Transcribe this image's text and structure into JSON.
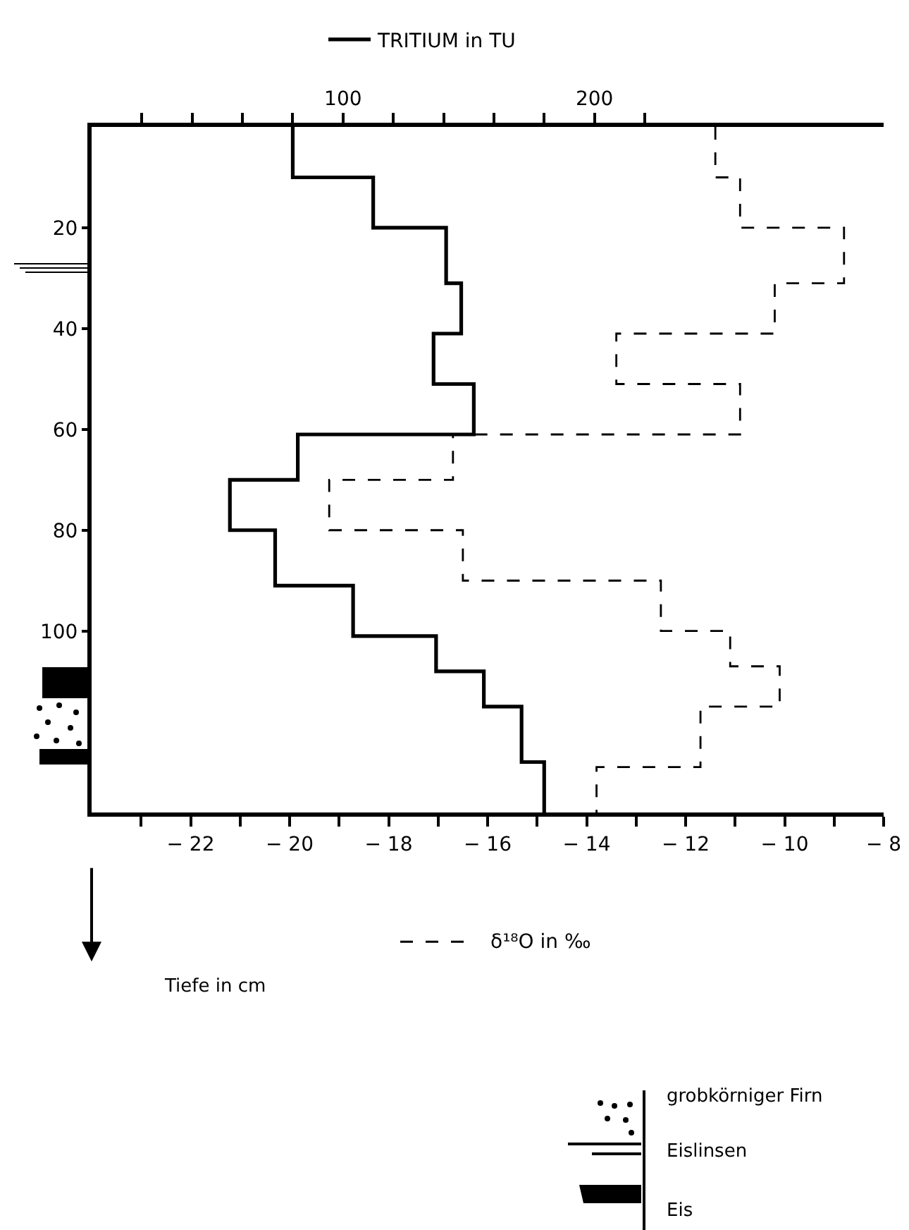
{
  "chart_data": {
    "type": "step",
    "orientation": "horizontal",
    "xlabel": "δ¹⁸O in ‰",
    "annotations": [
      "Tiefe in cm",
      "grobkörniger Firn",
      "Eislinsen",
      "Eis"
    ],
    "xlim": [
      -24,
      -8
    ],
    "xticks": [
      {
        "value": -23,
        "label": null
      },
      -22,
      {
        "value": -21,
        "label": null
      },
      -20,
      {
        "value": -19,
        "label": null
      },
      -18,
      {
        "value": -17,
        "label": null
      },
      -16,
      {
        "value": -15,
        "label": null
      },
      -14,
      {
        "value": -13,
        "label": null
      },
      -12,
      {
        "value": -11,
        "label": null
      },
      -10,
      {
        "value": -9,
        "label": null
      },
      -8
    ],
    "x2lim": [
      0,
      315
    ],
    "x2ticks": [
      {
        "value": 20,
        "label": null
      },
      {
        "value": 40,
        "label": null
      },
      {
        "value": 60,
        "label": null
      },
      {
        "value": 80,
        "label": null
      },
      100,
      {
        "value": 120,
        "label": null
      },
      {
        "value": 140,
        "label": null
      },
      {
        "value": 160,
        "label": null
      },
      {
        "value": 180,
        "label": null
      },
      200,
      {
        "value": 220,
        "label": null
      }
    ],
    "ylim": [
      136,
      0
    ],
    "yticks": [
      20,
      40,
      60,
      80,
      100
    ],
    "grid": false,
    "legend": "top",
    "series": [
      {
        "name": "TRITIUM in TU",
        "axis": "x2",
        "color": "#000000",
        "line_style": "solid",
        "x": [
          0,
          10,
          20,
          31,
          41,
          51,
          61,
          70,
          80,
          91,
          101,
          108,
          115,
          126,
          136
        ],
        "values": [
          80,
          112,
          141,
          147,
          136,
          152,
          82,
          55,
          73,
          104,
          137,
          156,
          171,
          180,
          180
        ]
      },
      {
        "color": "#000000",
        "line_style": "dashed",
        "x": [
          0,
          10,
          20,
          31,
          41,
          51,
          61,
          70,
          80,
          90,
          100,
          107,
          115,
          127,
          136
        ],
        "values": [
          -11.4,
          -10.9,
          -8.8,
          -10.2,
          -13.4,
          -10.9,
          -16.7,
          -19.2,
          -16.5,
          -12.5,
          -11.1,
          -10.1,
          -11.7,
          -13.8,
          -13.8
        ]
      }
    ]
  }
}
